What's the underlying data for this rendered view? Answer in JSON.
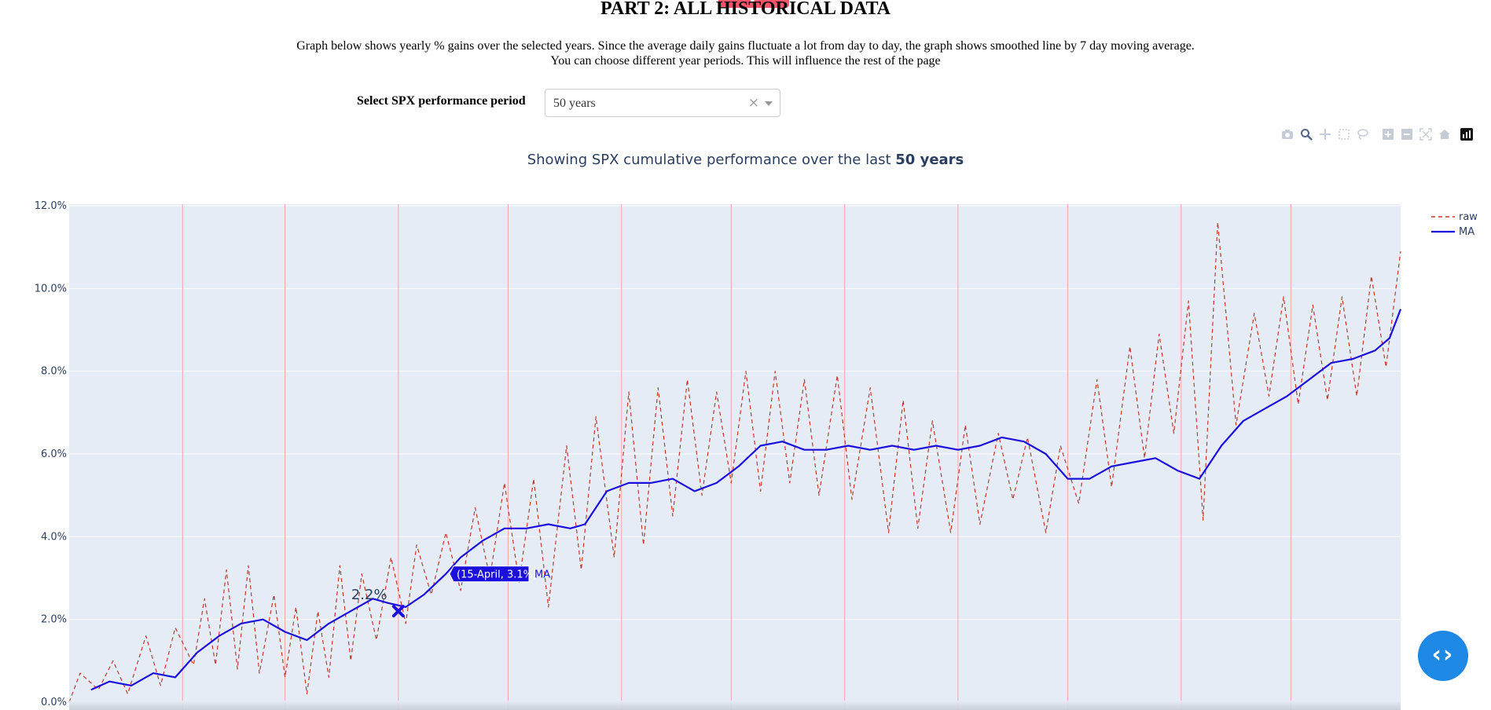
{
  "header": {
    "title": "PART 2: ALL HISTORICAL DATA",
    "description_line1": "Graph below shows yearly % gains over the selected years. Since the average daily gains fluctuate a lot from day to day, the graph shows smoothed line by 7 day moving average.",
    "description_line2": "You can choose different year periods. This will influence the rest of the page"
  },
  "selector": {
    "label": "Select SPX performance period",
    "value": "50 years",
    "clear_glyph": "×"
  },
  "modebar": [
    "camera-icon",
    "zoom-icon",
    "pan-icon",
    "box-select-icon",
    "lasso-icon",
    "zoom-in-icon",
    "zoom-out-icon",
    "autoscale-icon",
    "reset-axes-icon",
    "plotly-logo-icon"
  ],
  "chart_title": {
    "prefix": "Showing SPX cumulative performance over the last ",
    "bold": "50 years"
  },
  "colors": {
    "raw": "#c0392b",
    "ma": "#1a0fdc",
    "plot_bg": "#e5ecf6",
    "grid": "#ffffff",
    "month_line": "#f4a6ab",
    "axis_text": "#2a3f5f"
  },
  "fab": {
    "glyph": "‹›",
    "icon": "code-icon"
  },
  "chart_data": {
    "type": "line",
    "x_unit": "day of year",
    "x_range": [
      1,
      365
    ],
    "month_starts": [
      32,
      60,
      91,
      121,
      152,
      182,
      213,
      244,
      274,
      305,
      335
    ],
    "y_unit": "%",
    "ylim": [
      0,
      12
    ],
    "yticks": [
      0,
      2,
      4,
      6,
      8,
      10,
      12
    ],
    "ytick_labels": [
      "0.0%",
      "2.0%",
      "4.0%",
      "6.0%",
      "8.0%",
      "10.0%",
      "12.0%"
    ],
    "grid": true,
    "legend_position": "top-right",
    "series": [
      {
        "name": "raw",
        "style": "dashed",
        "x": [
          1,
          4,
          9,
          13,
          17,
          22,
          26,
          30,
          35,
          38,
          41,
          44,
          47,
          50,
          53,
          57,
          60,
          63,
          66,
          69,
          72,
          75,
          78,
          81,
          85,
          89,
          93,
          96,
          100,
          104,
          108,
          112,
          116,
          120,
          124,
          128,
          132,
          137,
          141,
          145,
          150,
          154,
          158,
          162,
          166,
          170,
          174,
          178,
          182,
          186,
          190,
          194,
          198,
          202,
          206,
          211,
          215,
          220,
          225,
          229,
          233,
          237,
          242,
          246,
          250,
          255,
          259,
          263,
          268,
          272,
          277,
          282,
          286,
          291,
          295,
          299,
          303,
          307,
          311,
          315,
          320,
          325,
          329,
          333,
          337,
          341,
          345,
          349,
          353,
          357,
          361,
          365
        ],
        "y": [
          0.0,
          0.7,
          0.3,
          1.0,
          0.2,
          1.6,
          0.4,
          1.8,
          0.9,
          2.5,
          0.9,
          3.2,
          0.8,
          3.3,
          0.7,
          2.6,
          0.6,
          2.3,
          0.2,
          2.2,
          0.6,
          3.3,
          1.0,
          3.1,
          1.5,
          3.5,
          1.9,
          3.8,
          2.6,
          4.1,
          2.7,
          4.7,
          3.0,
          5.3,
          2.9,
          5.4,
          2.3,
          6.2,
          3.2,
          6.9,
          3.5,
          7.5,
          3.8,
          7.6,
          4.5,
          7.8,
          5.0,
          7.5,
          5.3,
          8.0,
          5.1,
          8.0,
          5.3,
          7.8,
          5.0,
          7.9,
          4.9,
          7.6,
          4.1,
          7.3,
          4.2,
          6.8,
          4.1,
          6.7,
          4.3,
          6.5,
          4.9,
          6.4,
          4.1,
          6.2,
          4.8,
          7.8,
          5.2,
          8.6,
          5.9,
          8.9,
          6.5,
          9.7,
          4.4,
          11.6,
          6.7,
          9.4,
          7.4,
          9.8,
          7.2,
          9.6,
          7.3,
          9.8,
          7.4,
          10.3,
          8.1,
          10.9
        ]
      },
      {
        "name": "MA",
        "style": "solid",
        "x": [
          7,
          12,
          18,
          24,
          30,
          36,
          42,
          48,
          54,
          60,
          66,
          72,
          78,
          84,
          88,
          93,
          98,
          104,
          108,
          114,
          120,
          126,
          132,
          138,
          142,
          148,
          154,
          160,
          166,
          172,
          178,
          184,
          190,
          196,
          202,
          208,
          214,
          220,
          226,
          232,
          238,
          244,
          250,
          256,
          262,
          268,
          274,
          280,
          286,
          292,
          298,
          304,
          310,
          316,
          322,
          328,
          334,
          340,
          346,
          352,
          358,
          362,
          365
        ],
        "y": [
          0.3,
          0.5,
          0.4,
          0.7,
          0.6,
          1.2,
          1.6,
          1.9,
          2.0,
          1.7,
          1.5,
          1.9,
          2.2,
          2.5,
          2.4,
          2.3,
          2.6,
          3.1,
          3.5,
          3.9,
          4.2,
          4.2,
          4.3,
          4.2,
          4.3,
          5.1,
          5.3,
          5.3,
          5.4,
          5.1,
          5.3,
          5.7,
          6.2,
          6.3,
          6.1,
          6.1,
          6.2,
          6.1,
          6.2,
          6.1,
          6.2,
          6.1,
          6.2,
          6.4,
          6.3,
          6.0,
          5.4,
          5.4,
          5.7,
          5.8,
          5.9,
          5.6,
          5.4,
          6.2,
          6.8,
          7.1,
          7.4,
          7.8,
          8.2,
          8.3,
          8.5,
          8.8,
          9.5
        ]
      }
    ],
    "hover": {
      "label": "(15-April, 3.1%)",
      "series": "MA",
      "x": 105,
      "y": 3.1
    },
    "annotation": {
      "text": "2.2%",
      "x": 91,
      "y": 2.2
    }
  }
}
